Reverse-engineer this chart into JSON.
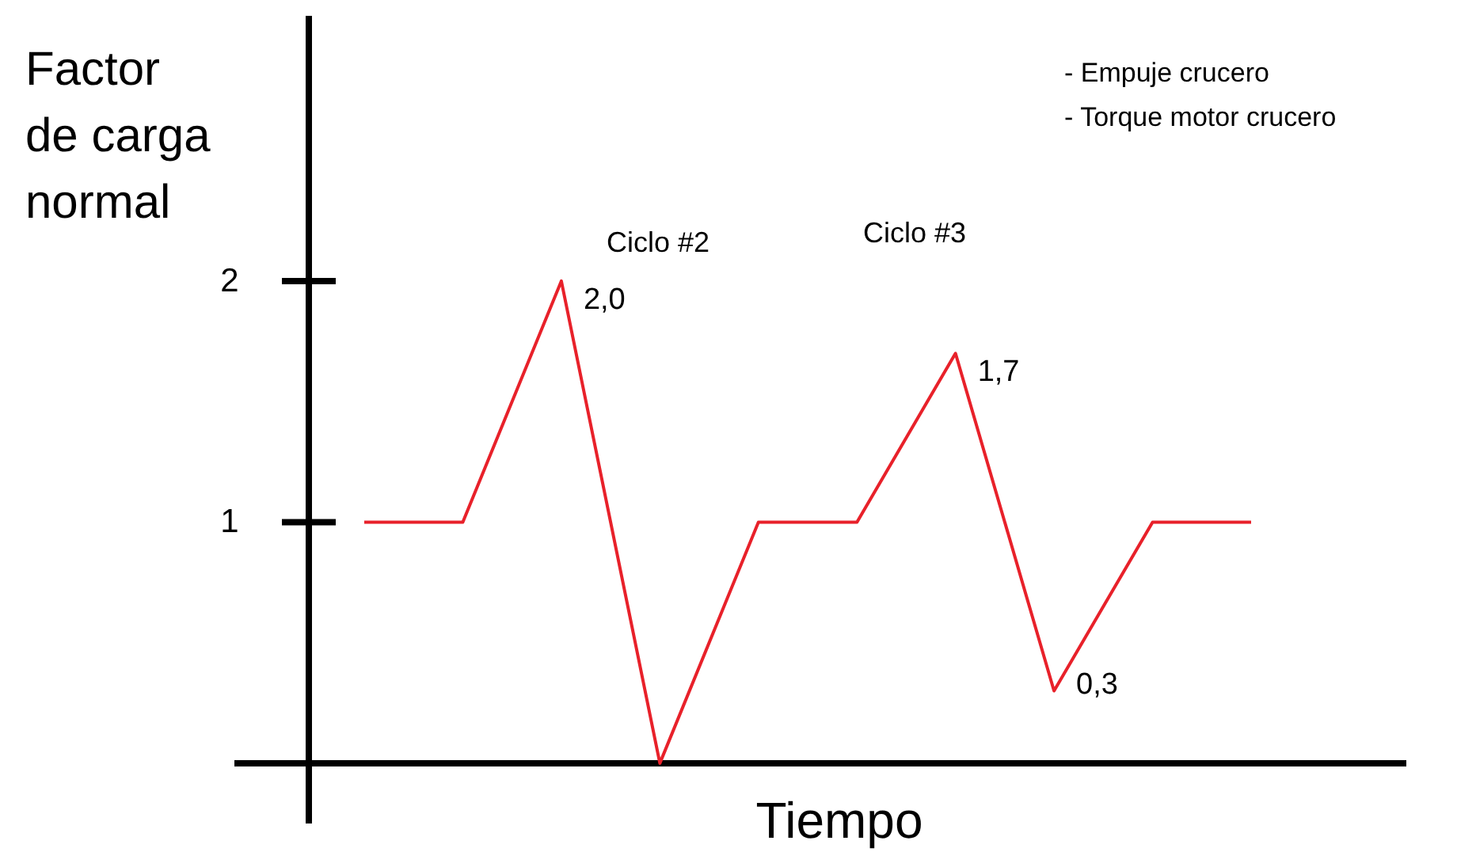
{
  "chart_data": {
    "type": "line",
    "xlabel": "Tiempo",
    "ylabel": "Factor de carga normal",
    "categories": [
      null,
      null,
      null,
      null,
      null,
      null,
      null,
      null,
      null,
      null
    ],
    "series": [
      {
        "color": "#e8212a",
        "values": [
          1,
          1,
          2,
          0,
          1,
          1,
          1.7,
          0.3,
          1,
          1
        ],
        "value_labels": [
          null,
          null,
          "2,0",
          null,
          null,
          null,
          "1,7",
          "0,3",
          null,
          null
        ]
      }
    ],
    "ylim": [
      -0.25,
      3.1
    ],
    "yticks": [
      1,
      2
    ],
    "tick_labels": "y",
    "grid": false,
    "marker": "none",
    "line_style": "solid",
    "annotations": [
      "Ciclo #2",
      "Ciclo #3",
      "- Empuje crucero",
      "- Torque motor crucero"
    ]
  }
}
